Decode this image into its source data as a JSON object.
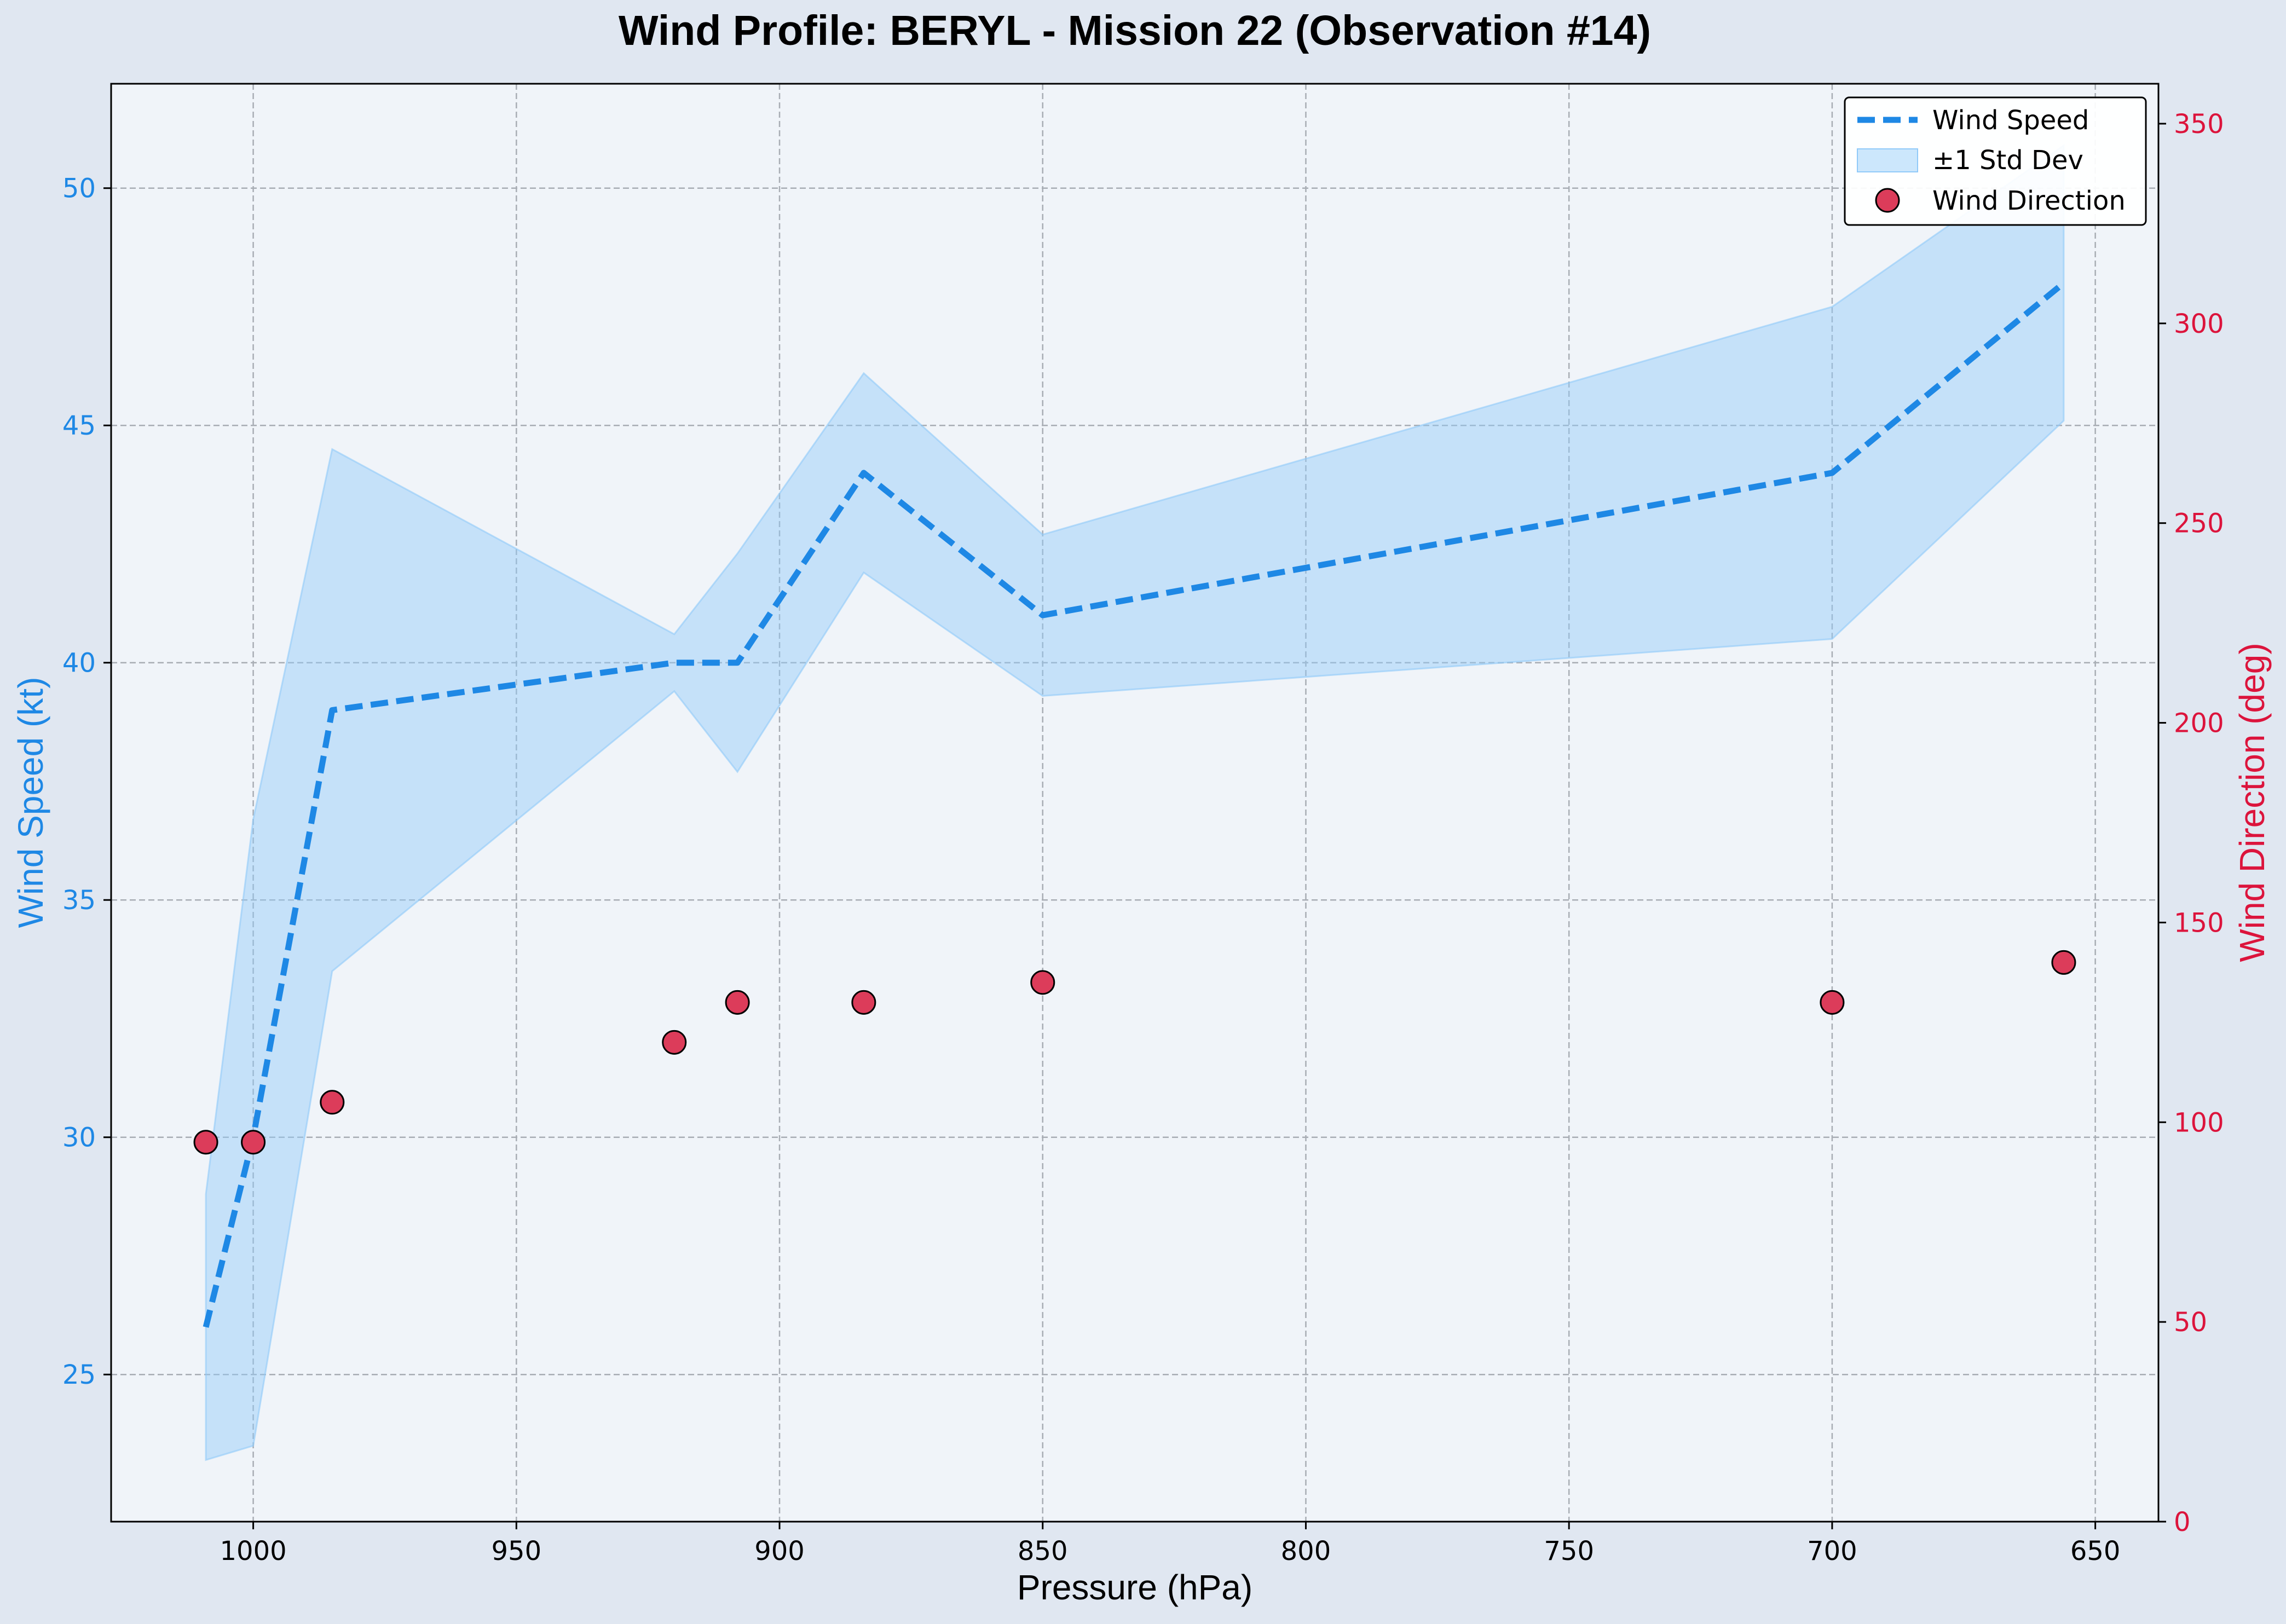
{
  "chart_data": {
    "type": "line",
    "title": "Wind Profile: BERYL - Mission 22 (Observation #14)",
    "xlabel": "Pressure (hPa)",
    "ylabel": "Wind Speed (kt)",
    "ylabel_right": "Wind Direction (deg)",
    "x_inverted": true,
    "xlim": [
      1027,
      638
    ],
    "ylim": [
      21.9,
      52.2
    ],
    "ylim_right": [
      0,
      360
    ],
    "x_ticks": [
      1000,
      950,
      900,
      850,
      800,
      750,
      700,
      650
    ],
    "y_ticks": [
      25,
      30,
      35,
      40,
      45,
      50
    ],
    "y_ticks_right": [
      0,
      50,
      100,
      150,
      200,
      250,
      300,
      350
    ],
    "grid": true,
    "legend_position": "top-right",
    "x": [
      1009,
      1000,
      985,
      920,
      908,
      884,
      850,
      700,
      656
    ],
    "series": [
      {
        "name": "Wind Speed",
        "axis": "left",
        "style": "dashed-line",
        "color": "#1e88e5",
        "values": [
          26,
          30,
          39,
          40,
          40,
          44,
          41,
          44,
          48
        ]
      },
      {
        "name": "±1 Std Dev",
        "axis": "left",
        "style": "band",
        "color": "#90caf9",
        "lower": [
          23.2,
          23.5,
          33.5,
          39.4,
          37.7,
          41.9,
          39.3,
          40.5,
          45.1
        ],
        "upper": [
          28.8,
          36.7,
          44.5,
          40.6,
          42.3,
          46.1,
          42.7,
          47.5,
          50.9
        ]
      },
      {
        "name": "Wind Direction",
        "axis": "right",
        "style": "scatter",
        "color": "#dc3c5a",
        "values": [
          95,
          95,
          105,
          120,
          130,
          130,
          135,
          130,
          140
        ]
      }
    ]
  },
  "colors": {
    "background": "#e0e7f1",
    "plot_background": "#f0f4f9",
    "left_axis": "#1e88e5",
    "right_axis": "#dc143c"
  }
}
